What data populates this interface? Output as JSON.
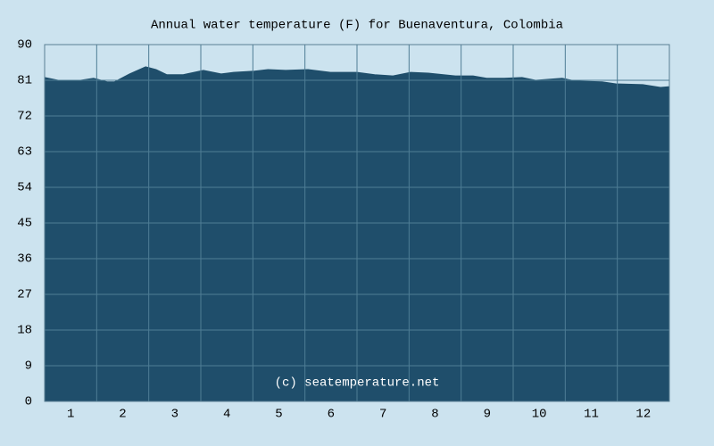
{
  "chart_data": {
    "type": "area",
    "title": "Annual water temperature (F) for Buenaventura, Colombia",
    "watermark": "(c) seatemperature.net",
    "x": [
      0.5,
      0.76,
      1.19,
      1.44,
      1.7,
      1.84,
      2.13,
      2.44,
      2.64,
      2.85,
      3.16,
      3.55,
      3.89,
      4.13,
      4.53,
      4.79,
      5.13,
      5.56,
      5.99,
      6.5,
      6.84,
      7.19,
      7.53,
      7.87,
      8.39,
      8.73,
      8.99,
      9.33,
      9.67,
      9.93,
      10.44,
      10.7,
      11.21,
      11.47,
      11.99,
      12.33,
      12.5
    ],
    "series": [
      {
        "color": "#1f4e6b",
        "values": [
          81.7,
          81.0,
          81.0,
          81.5,
          80.6,
          80.6,
          82.6,
          84.4,
          83.7,
          82.4,
          82.4,
          83.5,
          82.6,
          83.0,
          83.3,
          83.7,
          83.5,
          83.7,
          83.0,
          83.0,
          82.4,
          82.1,
          83.0,
          82.8,
          82.1,
          82.1,
          81.5,
          81.5,
          81.7,
          81.0,
          81.5,
          80.8,
          80.6,
          80.1,
          79.9,
          79.2,
          79.4
        ]
      }
    ],
    "xlim": [
      0.5,
      12.5
    ],
    "xticks": [
      1,
      2,
      3,
      4,
      5,
      6,
      7,
      8,
      9,
      10,
      11,
      12
    ],
    "ylim": [
      0,
      90
    ],
    "yticks": [
      0,
      9,
      18,
      27,
      36,
      45,
      54,
      63,
      72,
      81,
      90
    ],
    "grid": true
  }
}
